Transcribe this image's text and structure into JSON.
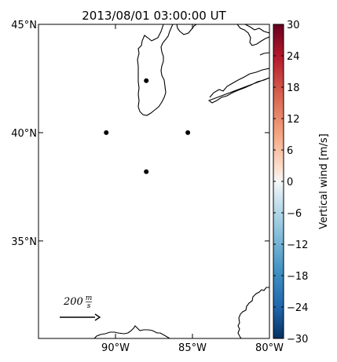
{
  "title": "2013/08/01 03:00:00 UT",
  "map": {
    "lon_range": [
      -95,
      -80
    ],
    "lat_range": [
      30.5,
      45
    ],
    "lat_ticks": [
      {
        "value": 45,
        "label": "45°N"
      },
      {
        "value": 40,
        "label": "40°N"
      },
      {
        "value": 35,
        "label": "35°N"
      }
    ],
    "lon_ticks": [
      {
        "value": -90,
        "label": "90°W"
      },
      {
        "value": -85,
        "label": "85°W"
      },
      {
        "value": -80,
        "label": "80°W"
      }
    ],
    "stations": [
      {
        "lon": -88.0,
        "lat": 42.4
      },
      {
        "lon": -90.6,
        "lat": 40.0
      },
      {
        "lon": -85.3,
        "lat": 40.0
      },
      {
        "lon": -88.0,
        "lat": 38.2
      }
    ],
    "reference_vector": {
      "label_value": "200",
      "label_num": "m",
      "label_den": "s"
    }
  },
  "colorbar": {
    "label": "Vertical wind [m/s]",
    "range": [
      -30,
      30
    ],
    "colormap": "RdBu_r",
    "ticks": [
      "30",
      "24",
      "18",
      "12",
      "6",
      "0",
      "−6",
      "−12",
      "−18",
      "−24",
      "−30"
    ],
    "colors": {
      "top": "#67001f",
      "upper": "#d6604d",
      "mid": "#f7f7f7",
      "lower": "#4393c3",
      "bottom": "#053061"
    }
  }
}
